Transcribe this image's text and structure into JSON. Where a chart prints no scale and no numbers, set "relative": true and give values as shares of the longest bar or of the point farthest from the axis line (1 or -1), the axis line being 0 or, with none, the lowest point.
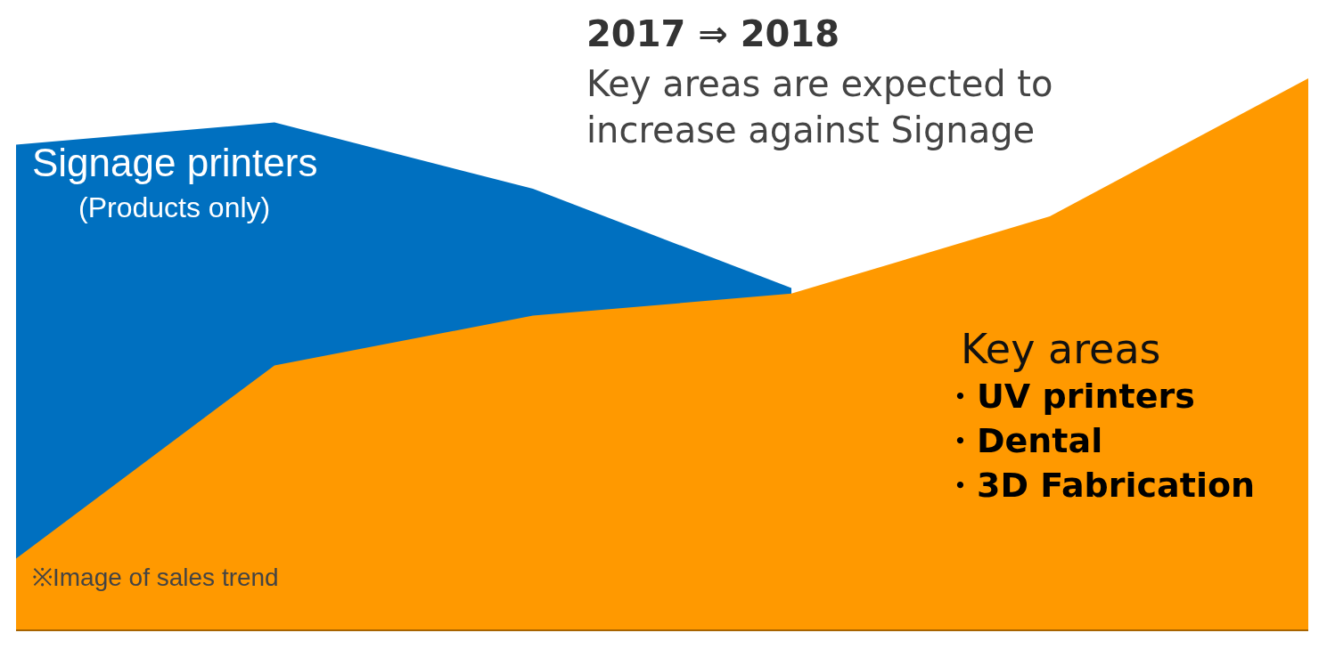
{
  "chart_data": {
    "type": "area",
    "title": "2017 ⇒ 2018",
    "subtitle": "Key areas are expected to increase against Signage",
    "relative": true,
    "categories": [
      null,
      null,
      null,
      null,
      null,
      null
    ],
    "series": [
      {
        "name": "Signage printers",
        "color": "#0070c0",
        "values": [
          0.88,
          0.92,
          0.8,
          0.62,
          null,
          null
        ]
      },
      {
        "name": "Key areas",
        "color": "#ff9900",
        "values": [
          0.13,
          0.48,
          0.57,
          0.61,
          0.75,
          1
        ]
      }
    ],
    "annotations": [
      "(Products only)",
      "・UV printers",
      "・Dental",
      "・3D Fabrication",
      "※Image of sales trend"
    ]
  }
}
